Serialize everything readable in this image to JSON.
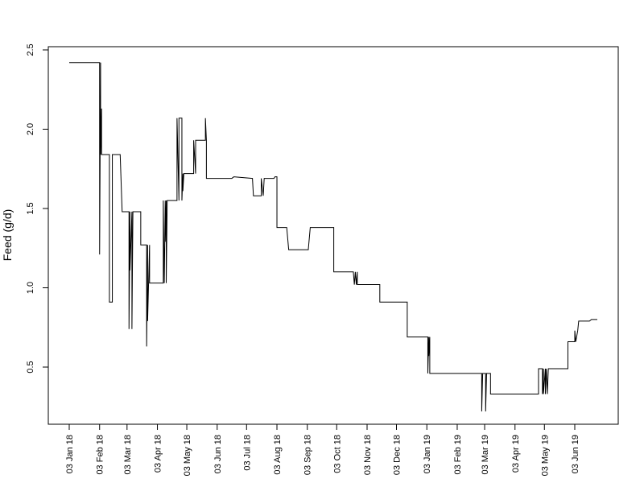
{
  "chart_data": {
    "type": "line",
    "title": "",
    "xlabel": "",
    "ylabel": "Feed (g/d)",
    "ylim": [
      0.13,
      2.5
    ],
    "grid": false,
    "legend": "none",
    "line_color": "#000000",
    "yticks": [
      {
        "value": 0.5,
        "label": "0.5"
      },
      {
        "value": 1.0,
        "label": "1.0"
      },
      {
        "value": 1.5,
        "label": "1.5"
      },
      {
        "value": 2.0,
        "label": "2.0"
      },
      {
        "value": 2.5,
        "label": "2.5"
      }
    ],
    "xticks": [
      {
        "date": "2018-01-03",
        "label": "03 Jan 18"
      },
      {
        "date": "2018-02-03",
        "label": "03 Feb 18"
      },
      {
        "date": "2018-03-03",
        "label": "03 Mar 18"
      },
      {
        "date": "2018-04-03",
        "label": "03 Apr 18"
      },
      {
        "date": "2018-05-03",
        "label": "03 May 18"
      },
      {
        "date": "2018-06-03",
        "label": "03 Jun 18"
      },
      {
        "date": "2018-07-03",
        "label": "03 Jul 18"
      },
      {
        "date": "2018-08-03",
        "label": "03 Aug 18"
      },
      {
        "date": "2018-09-03",
        "label": "03 Sep 18"
      },
      {
        "date": "2018-10-03",
        "label": "03 Oct 18"
      },
      {
        "date": "2018-11-03",
        "label": "03 Nov 18"
      },
      {
        "date": "2018-12-03",
        "label": "03 Dec 18"
      },
      {
        "date": "2019-01-03",
        "label": "03 Jan 19"
      },
      {
        "date": "2019-02-03",
        "label": "03 Feb 19"
      },
      {
        "date": "2019-03-03",
        "label": "03 Mar 19"
      },
      {
        "date": "2019-04-03",
        "label": "03 Apr 19"
      },
      {
        "date": "2019-05-03",
        "label": "03 May 19"
      },
      {
        "date": "2019-06-03",
        "label": "03 Jun 19"
      }
    ],
    "series": [
      {
        "points": [
          [
            "2018-01-03",
            2.42
          ],
          [
            "2018-02-03",
            2.42
          ],
          [
            "2018-02-03",
            1.21
          ],
          [
            "2018-02-04",
            2.42
          ],
          [
            "2018-02-04",
            1.84
          ],
          [
            "2018-02-05",
            2.13
          ],
          [
            "2018-02-05",
            1.84
          ],
          [
            "2018-02-13",
            1.84
          ],
          [
            "2018-02-13",
            0.91
          ],
          [
            "2018-02-16",
            0.91
          ],
          [
            "2018-02-16",
            1.84
          ],
          [
            "2018-02-24",
            1.84
          ],
          [
            "2018-02-26",
            1.48
          ],
          [
            "2018-03-05",
            1.48
          ],
          [
            "2018-03-05",
            0.74
          ],
          [
            "2018-03-06",
            1.48
          ],
          [
            "2018-03-06",
            1.11
          ],
          [
            "2018-03-08",
            1.48
          ],
          [
            "2018-03-08",
            0.74
          ],
          [
            "2018-03-09",
            1.48
          ],
          [
            "2018-03-17",
            1.48
          ],
          [
            "2018-03-17",
            1.27
          ],
          [
            "2018-03-23",
            1.27
          ],
          [
            "2018-03-23",
            0.63
          ],
          [
            "2018-03-24",
            1.27
          ],
          [
            "2018-03-24",
            0.79
          ],
          [
            "2018-03-26",
            1.27
          ],
          [
            "2018-03-26",
            1.03
          ],
          [
            "2018-04-09",
            1.03
          ],
          [
            "2018-04-09",
            1.55
          ],
          [
            "2018-04-10",
            1.03
          ],
          [
            "2018-04-11",
            1.55
          ],
          [
            "2018-04-11",
            1.29
          ],
          [
            "2018-04-12",
            1.55
          ],
          [
            "2018-04-12",
            1.03
          ],
          [
            "2018-04-13",
            1.55
          ],
          [
            "2018-04-23",
            1.55
          ],
          [
            "2018-04-23",
            2.07
          ],
          [
            "2018-04-25",
            1.55
          ],
          [
            "2018-04-25",
            2.07
          ],
          [
            "2018-04-28",
            2.07
          ],
          [
            "2018-04-28",
            1.55
          ],
          [
            "2018-04-29",
            1.72
          ],
          [
            "2018-04-29",
            1.61
          ],
          [
            "2018-04-30",
            1.72
          ],
          [
            "2018-05-10",
            1.72
          ],
          [
            "2018-05-10",
            1.93
          ],
          [
            "2018-05-12",
            1.72
          ],
          [
            "2018-05-12",
            1.93
          ],
          [
            "2018-05-22",
            1.93
          ],
          [
            "2018-05-22",
            2.07
          ],
          [
            "2018-05-23",
            1.93
          ],
          [
            "2018-05-23",
            1.69
          ],
          [
            "2018-06-18",
            1.69
          ],
          [
            "2018-06-20",
            1.7
          ],
          [
            "2018-07-09",
            1.69
          ],
          [
            "2018-07-10",
            1.58
          ],
          [
            "2018-07-18",
            1.58
          ],
          [
            "2018-07-18",
            1.69
          ],
          [
            "2018-07-20",
            1.58
          ],
          [
            "2018-07-21",
            1.69
          ],
          [
            "2018-07-31",
            1.69
          ],
          [
            "2018-08-01",
            1.7
          ],
          [
            "2018-08-03",
            1.7
          ],
          [
            "2018-08-03",
            1.38
          ],
          [
            "2018-08-13",
            1.38
          ],
          [
            "2018-08-15",
            1.24
          ],
          [
            "2018-09-04",
            1.24
          ],
          [
            "2018-09-06",
            1.38
          ],
          [
            "2018-09-30",
            1.38
          ],
          [
            "2018-09-30",
            1.1
          ],
          [
            "2018-10-20",
            1.1
          ],
          [
            "2018-10-21",
            1.02
          ],
          [
            "2018-10-22",
            1.1
          ],
          [
            "2018-10-23",
            1.02
          ],
          [
            "2018-10-24",
            1.1
          ],
          [
            "2018-10-24",
            1.02
          ],
          [
            "2018-11-16",
            1.02
          ],
          [
            "2018-11-16",
            0.91
          ],
          [
            "2018-12-14",
            0.91
          ],
          [
            "2018-12-14",
            0.69
          ],
          [
            "2019-01-04",
            0.69
          ],
          [
            "2019-01-04",
            0.46
          ],
          [
            "2019-01-05",
            0.69
          ],
          [
            "2019-01-05",
            0.57
          ],
          [
            "2019-01-06",
            0.69
          ],
          [
            "2019-01-06",
            0.46
          ],
          [
            "2019-02-28",
            0.46
          ],
          [
            "2019-02-28",
            0.22
          ],
          [
            "2019-03-01",
            0.46
          ],
          [
            "2019-03-04",
            0.46
          ],
          [
            "2019-03-04",
            0.22
          ],
          [
            "2019-03-05",
            0.46
          ],
          [
            "2019-03-09",
            0.46
          ],
          [
            "2019-03-09",
            0.33
          ],
          [
            "2019-04-27",
            0.33
          ],
          [
            "2019-04-27",
            0.49
          ],
          [
            "2019-05-01",
            0.49
          ],
          [
            "2019-05-01",
            0.33
          ],
          [
            "2019-05-02",
            0.49
          ],
          [
            "2019-05-02",
            0.33
          ],
          [
            "2019-05-04",
            0.49
          ],
          [
            "2019-05-04",
            0.33
          ],
          [
            "2019-05-05",
            0.49
          ],
          [
            "2019-05-06",
            0.33
          ],
          [
            "2019-05-07",
            0.49
          ],
          [
            "2019-05-27",
            0.49
          ],
          [
            "2019-05-27",
            0.66
          ],
          [
            "2019-06-03",
            0.66
          ],
          [
            "2019-06-03",
            0.73
          ],
          [
            "2019-06-04",
            0.66
          ],
          [
            "2019-06-06",
            0.73
          ],
          [
            "2019-06-07",
            0.79
          ],
          [
            "2019-06-18",
            0.79
          ],
          [
            "2019-06-20",
            0.8
          ],
          [
            "2019-06-26",
            0.8
          ]
        ]
      }
    ]
  }
}
